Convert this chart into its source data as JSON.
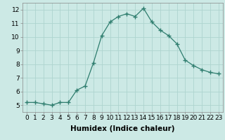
{
  "x": [
    0,
    1,
    2,
    3,
    4,
    5,
    6,
    7,
    8,
    9,
    10,
    11,
    12,
    13,
    14,
    15,
    16,
    17,
    18,
    19,
    20,
    21,
    22,
    23
  ],
  "y": [
    5.2,
    5.2,
    5.1,
    5.0,
    5.2,
    5.2,
    6.1,
    6.4,
    8.1,
    10.1,
    11.1,
    11.5,
    11.7,
    11.5,
    12.1,
    11.1,
    10.5,
    10.1,
    9.5,
    8.3,
    7.9,
    7.6,
    7.4,
    7.3
  ],
  "line_color": "#2e7d6e",
  "marker": "+",
  "marker_size": 4,
  "bg_color": "#cce9e5",
  "grid_color": "#aed4cf",
  "xlabel": "Humidex (Indice chaleur)",
  "xlim": [
    -0.5,
    23.5
  ],
  "ylim": [
    4.5,
    12.5
  ],
  "yticks": [
    5,
    6,
    7,
    8,
    9,
    10,
    11,
    12
  ],
  "xticks": [
    0,
    1,
    2,
    3,
    4,
    5,
    6,
    7,
    8,
    9,
    10,
    11,
    12,
    13,
    14,
    15,
    16,
    17,
    18,
    19,
    20,
    21,
    22,
    23
  ],
  "tick_label_size": 6.5,
  "xlabel_size": 7.5,
  "xlabel_weight": "bold"
}
